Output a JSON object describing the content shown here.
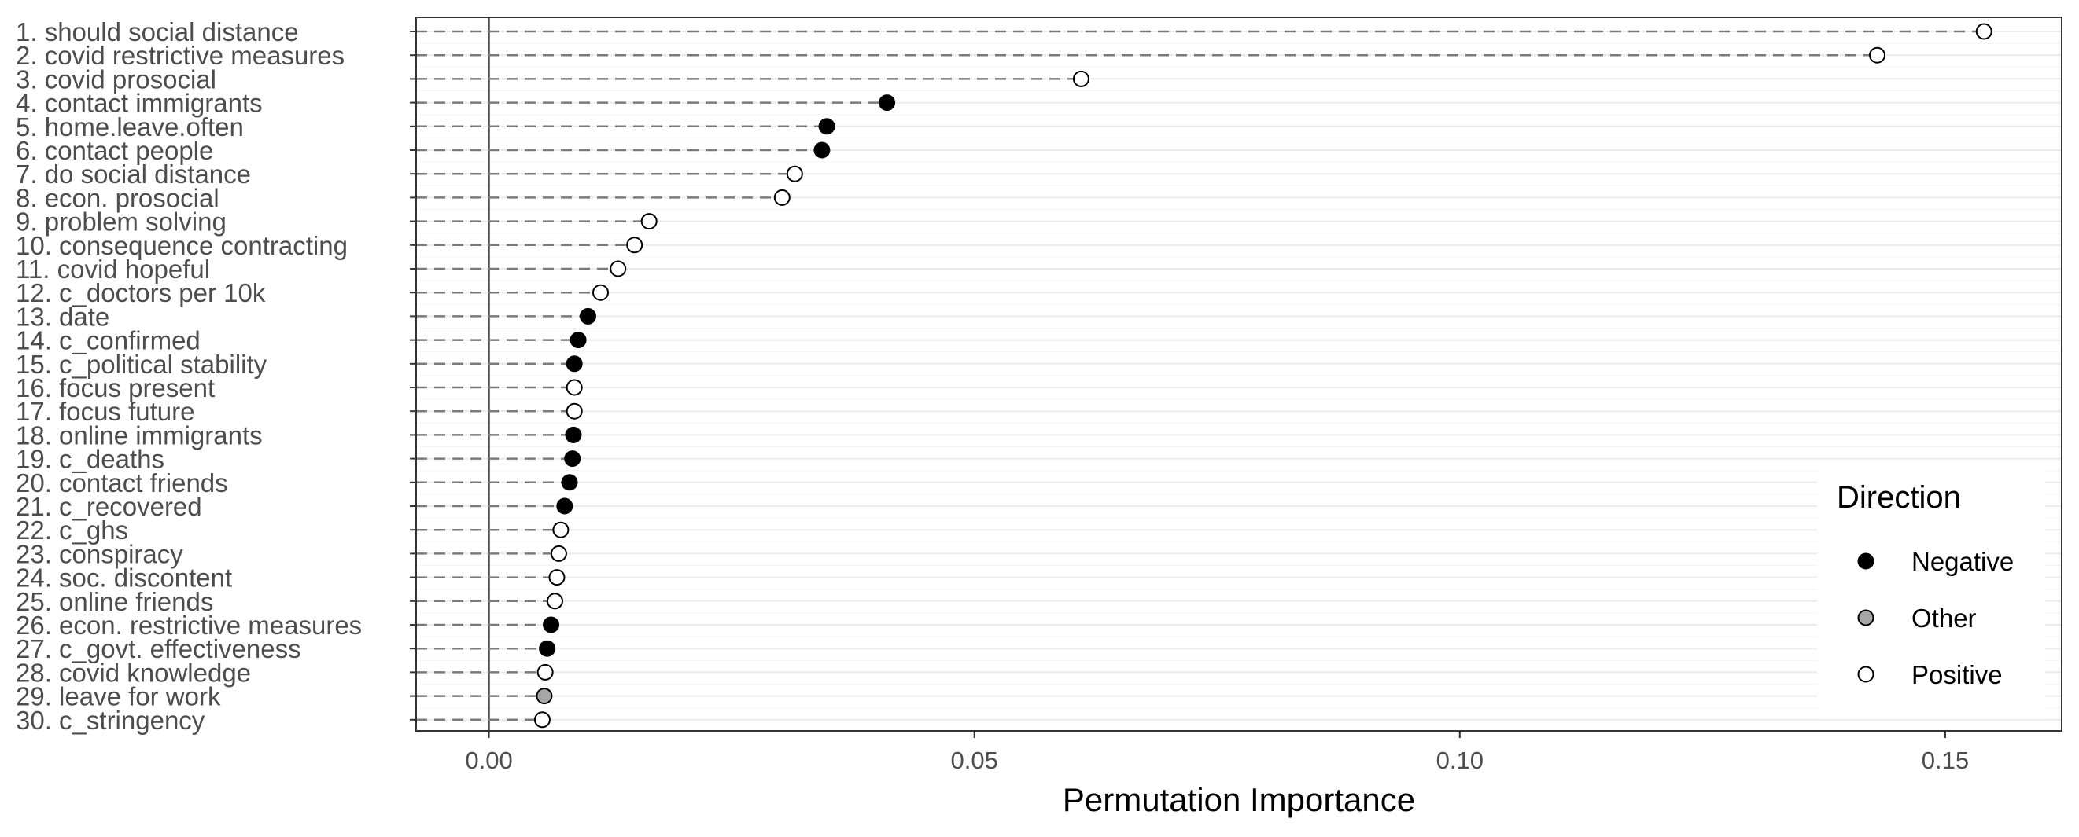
{
  "chart_data": {
    "type": "scatter",
    "xlabel": "Permutation Importance",
    "ylabel": "",
    "xlim": [
      -0.0075,
      0.162
    ],
    "x_ticks": [
      0.0,
      0.05,
      0.1,
      0.15
    ],
    "x_tick_labels": [
      "0.00",
      "0.05",
      "0.10",
      "0.15"
    ],
    "grid": true,
    "legend": {
      "title": "Direction",
      "placement": "bottom-right",
      "entries": [
        {
          "label": "Negative",
          "color": "#000000"
        },
        {
          "label": "Other",
          "color": "#a6a6a6"
        },
        {
          "label": "Positive",
          "color": "#ffffff"
        }
      ]
    },
    "points": [
      {
        "label": "1. should social distance",
        "value": 0.154,
        "direction": "Positive"
      },
      {
        "label": "2. covid restrictive measures",
        "value": 0.143,
        "direction": "Positive"
      },
      {
        "label": "3. covid prosocial",
        "value": 0.061,
        "direction": "Positive"
      },
      {
        "label": "4. contact immigrants",
        "value": 0.041,
        "direction": "Negative"
      },
      {
        "label": "5. home.leave.often",
        "value": 0.0348,
        "direction": "Negative"
      },
      {
        "label": "6. contact people",
        "value": 0.0343,
        "direction": "Negative"
      },
      {
        "label": "7. do social distance",
        "value": 0.0315,
        "direction": "Positive"
      },
      {
        "label": "8. econ. prosocial",
        "value": 0.0302,
        "direction": "Positive"
      },
      {
        "label": "9. problem solving",
        "value": 0.0165,
        "direction": "Positive"
      },
      {
        "label": "10. consequence contracting",
        "value": 0.015,
        "direction": "Positive"
      },
      {
        "label": "11. covid hopeful",
        "value": 0.0133,
        "direction": "Positive"
      },
      {
        "label": "12. c_doctors per 10k",
        "value": 0.0115,
        "direction": "Positive"
      },
      {
        "label": "13. date",
        "value": 0.0102,
        "direction": "Negative"
      },
      {
        "label": "14. c_confirmed",
        "value": 0.0092,
        "direction": "Negative"
      },
      {
        "label": "15. c_political stability",
        "value": 0.0088,
        "direction": "Negative"
      },
      {
        "label": "16. focus present",
        "value": 0.0088,
        "direction": "Positive"
      },
      {
        "label": "17. focus future",
        "value": 0.0088,
        "direction": "Positive"
      },
      {
        "label": "18. online immigrants",
        "value": 0.0087,
        "direction": "Negative"
      },
      {
        "label": "19. c_deaths",
        "value": 0.0086,
        "direction": "Negative"
      },
      {
        "label": "20. contact friends",
        "value": 0.0083,
        "direction": "Negative"
      },
      {
        "label": "21. c_recovered",
        "value": 0.0078,
        "direction": "Negative"
      },
      {
        "label": "22. c_ghs",
        "value": 0.0074,
        "direction": "Positive"
      },
      {
        "label": "23. conspiracy",
        "value": 0.0072,
        "direction": "Positive"
      },
      {
        "label": "24. soc. discontent",
        "value": 0.007,
        "direction": "Positive"
      },
      {
        "label": "25. online friends",
        "value": 0.0068,
        "direction": "Positive"
      },
      {
        "label": "26. econ. restrictive measures",
        "value": 0.0064,
        "direction": "Negative"
      },
      {
        "label": "27. c_govt. effectiveness",
        "value": 0.006,
        "direction": "Negative"
      },
      {
        "label": "28. covid knowledge",
        "value": 0.0058,
        "direction": "Positive"
      },
      {
        "label": "29. leave for work",
        "value": 0.0057,
        "direction": "Other"
      },
      {
        "label": "30. c_stringency",
        "value": 0.0055,
        "direction": "Positive"
      }
    ]
  }
}
